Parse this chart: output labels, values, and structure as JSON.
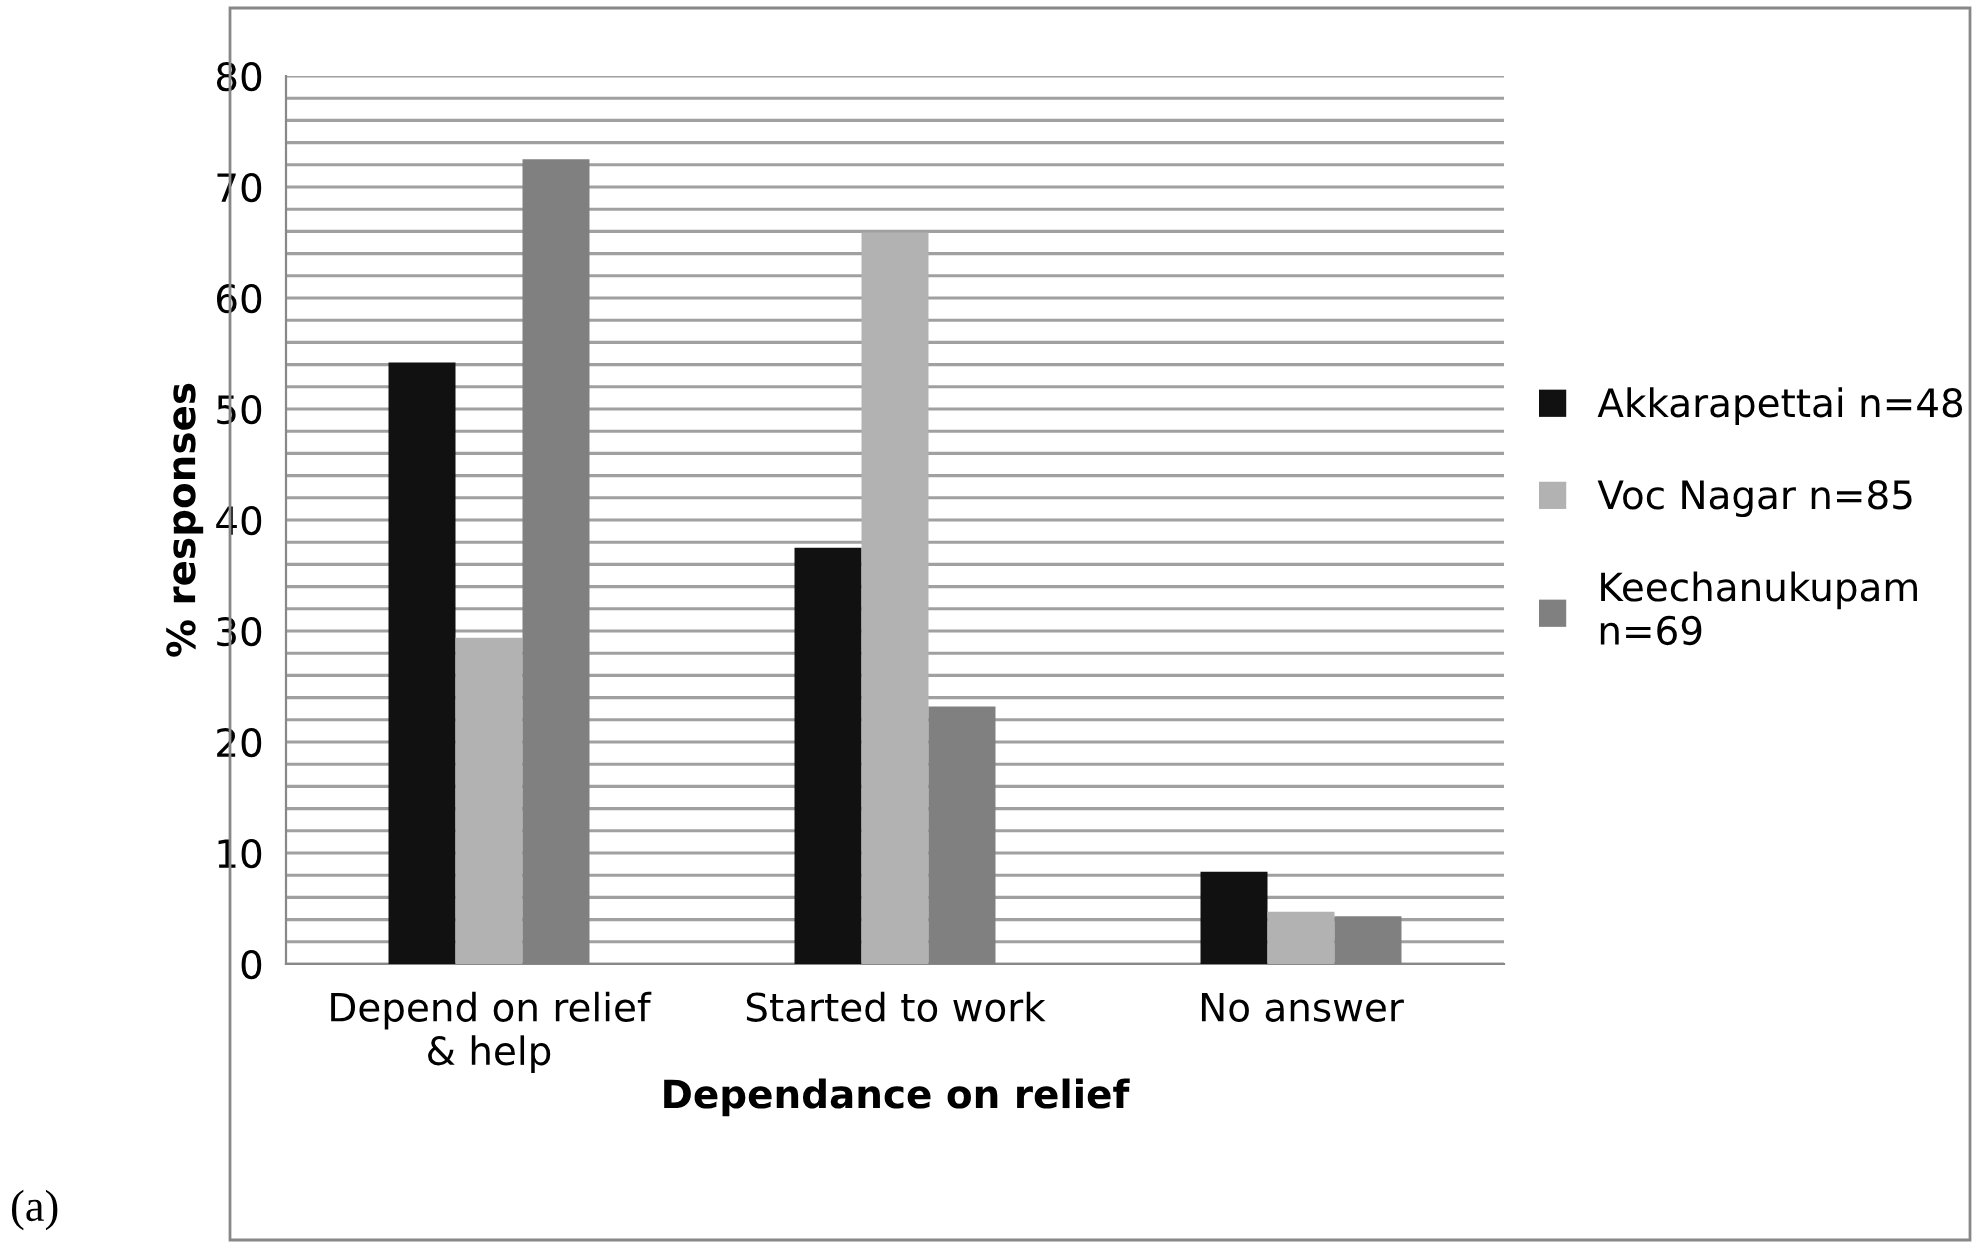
{
  "chart_data": {
    "type": "bar",
    "xlabel": "Dependance on relief",
    "ylabel": "% responses",
    "categories": [
      "Depend on relief\n& help",
      "Started to work",
      "No answer"
    ],
    "series": [
      {
        "name": "Akkarapettai n=48",
        "color": "#111111",
        "values": [
          54.2,
          37.5,
          8.3
        ]
      },
      {
        "name": "Voc Nagar n=85",
        "color": "#b2b2b2",
        "values": [
          29.4,
          65.9,
          4.7
        ]
      },
      {
        "name": "Keechanukupam\nn=69",
        "color": "#808080",
        "values": [
          72.5,
          23.2,
          4.3
        ]
      }
    ],
    "ylim": [
      0,
      80
    ],
    "yticks": [
      0,
      {
        "value": 2,
        "label": null
      },
      {
        "value": 4,
        "label": null
      },
      {
        "value": 6,
        "label": null
      },
      {
        "value": 8,
        "label": null
      },
      10,
      {
        "value": 12,
        "label": null
      },
      {
        "value": 14,
        "label": null
      },
      {
        "value": 16,
        "label": null
      },
      {
        "value": 18,
        "label": null
      },
      20,
      {
        "value": 22,
        "label": null
      },
      {
        "value": 24,
        "label": null
      },
      {
        "value": 26,
        "label": null
      },
      {
        "value": 28,
        "label": null
      },
      30,
      {
        "value": 32,
        "label": null
      },
      {
        "value": 34,
        "label": null
      },
      {
        "value": 36,
        "label": null
      },
      {
        "value": 38,
        "label": null
      },
      40,
      {
        "value": 42,
        "label": null
      },
      {
        "value": 44,
        "label": null
      },
      {
        "value": 46,
        "label": null
      },
      {
        "value": 48,
        "label": null
      },
      50,
      {
        "value": 52,
        "label": null
      },
      {
        "value": 54,
        "label": null
      },
      {
        "value": 56,
        "label": null
      },
      {
        "value": 58,
        "label": null
      },
      60,
      {
        "value": 62,
        "label": null
      },
      {
        "value": 64,
        "label": null
      },
      {
        "value": 66,
        "label": null
      },
      {
        "value": 68,
        "label": null
      },
      70,
      {
        "value": 72,
        "label": null
      },
      {
        "value": 74,
        "label": null
      },
      {
        "value": 76,
        "label": null
      },
      {
        "value": 78,
        "label": null
      },
      80
    ],
    "grid": "y",
    "legend": "right",
    "annotations": [
      "(a)"
    ]
  }
}
